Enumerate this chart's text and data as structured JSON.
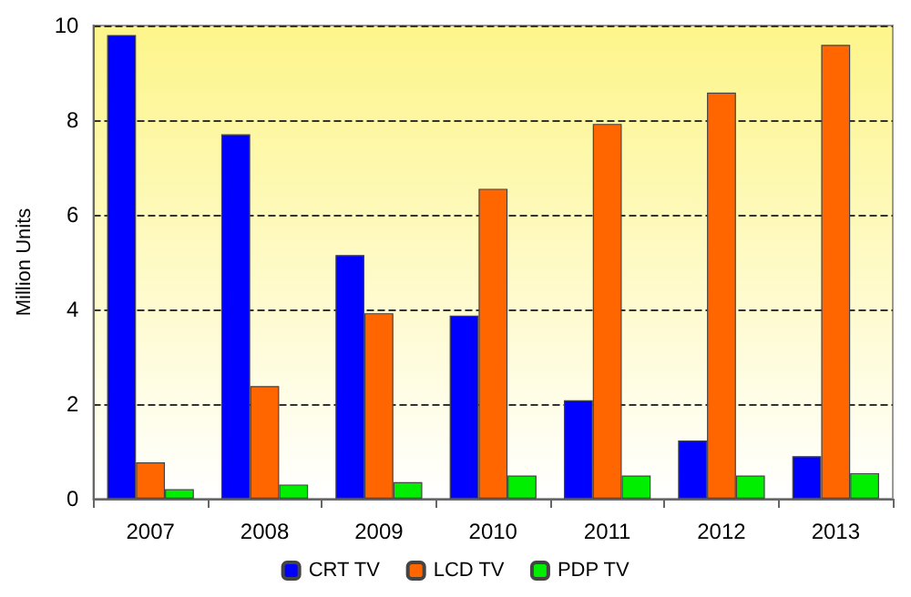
{
  "chart_data": {
    "type": "bar",
    "ylabel": "Million Units",
    "categories": [
      "2007",
      "2008",
      "2009",
      "2010",
      "2011",
      "2012",
      "2013"
    ],
    "series": [
      {
        "name": "CRT TV",
        "color": "#0000ff",
        "values": [
          9.8,
          7.7,
          5.15,
          3.87,
          2.08,
          1.23,
          0.9
        ]
      },
      {
        "name": "LCD TV",
        "color": "#ff6600",
        "values": [
          0.77,
          2.38,
          3.92,
          6.55,
          7.92,
          8.58,
          9.59
        ]
      },
      {
        "name": "PDP TV",
        "color": "#00ee00",
        "values": [
          0.2,
          0.3,
          0.35,
          0.49,
          0.49,
          0.49,
          0.54
        ]
      }
    ],
    "ylim": [
      0,
      10
    ],
    "yticks": [
      0,
      2,
      4,
      6,
      8,
      10
    ],
    "grid": "y",
    "legend": "bottom"
  }
}
